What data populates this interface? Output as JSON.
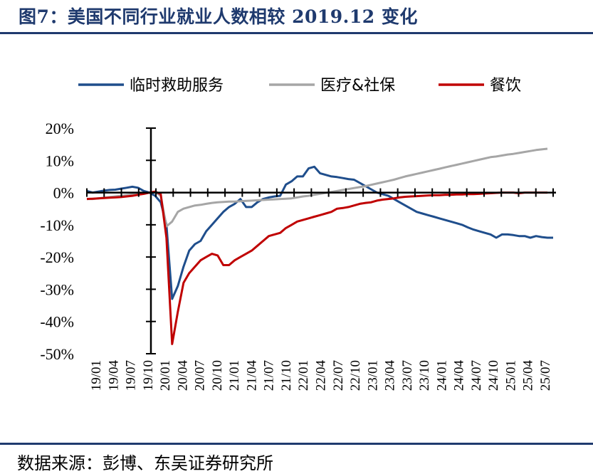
{
  "header": {
    "title": "图7：美国不同行业就业人数相较 2019.12 变化"
  },
  "footer": {
    "source": "数据来源：彭博、东吴证券研究所"
  },
  "chart_data": {
    "type": "line",
    "title": "图7：美国不同行业就业人数相较 2019.12 变化",
    "xlabel": "",
    "ylabel": "",
    "ylim": [
      -50,
      20
    ],
    "yticks": [
      20,
      10,
      0,
      -10,
      -20,
      -30,
      -40,
      -50
    ],
    "ytick_labels": [
      "20%",
      "10%",
      "0%",
      "-10%",
      "-20%",
      "-30%",
      "-40%",
      "-50%"
    ],
    "xtick_labels": [
      "19/01",
      "19/04",
      "19/07",
      "19/10",
      "20/01",
      "20/04",
      "20/07",
      "20/10",
      "21/01",
      "21/04",
      "21/07",
      "21/10",
      "22/01",
      "22/04",
      "22/07",
      "22/10",
      "23/01",
      "23/04",
      "23/07",
      "23/10",
      "24/01",
      "24/04",
      "24/07",
      "24/10",
      "25/01",
      "25/04",
      "25/07"
    ],
    "legend_position": "top",
    "grid": false,
    "series": [
      {
        "name": "临时救助服务",
        "color": "#1f4e8c",
        "points": [
          [
            0,
            0.5
          ],
          [
            1,
            0
          ],
          [
            2,
            0.3
          ],
          [
            3,
            0.6
          ],
          [
            4,
            0.8
          ],
          [
            5,
            0.9
          ],
          [
            6,
            1.2
          ],
          [
            7,
            1.5
          ],
          [
            8,
            1.8
          ],
          [
            9,
            1.5
          ],
          [
            10,
            0.5
          ],
          [
            11,
            0
          ],
          [
            12,
            -1
          ],
          [
            13,
            -3
          ],
          [
            14,
            -10
          ],
          [
            15,
            -33
          ],
          [
            16,
            -29
          ],
          [
            17,
            -23
          ],
          [
            18,
            -18
          ],
          [
            19,
            -16
          ],
          [
            20,
            -15
          ],
          [
            21,
            -12
          ],
          [
            22,
            -10
          ],
          [
            23,
            -8
          ],
          [
            24,
            -6
          ],
          [
            25,
            -4.5
          ],
          [
            26,
            -3.5
          ],
          [
            27,
            -2
          ],
          [
            28,
            -4.5
          ],
          [
            29,
            -4.5
          ],
          [
            30,
            -3
          ],
          [
            31,
            -2
          ],
          [
            32,
            -1.5
          ],
          [
            33,
            -1.2
          ],
          [
            34,
            -1
          ],
          [
            35,
            2.5
          ],
          [
            36,
            3.5
          ],
          [
            37,
            5
          ],
          [
            38,
            5
          ],
          [
            39,
            7.5
          ],
          [
            40,
            8
          ],
          [
            41,
            6
          ],
          [
            42,
            5.5
          ],
          [
            43,
            5
          ],
          [
            44,
            4.8
          ],
          [
            45,
            4.5
          ],
          [
            46,
            4.2
          ],
          [
            47,
            4
          ],
          [
            48,
            3
          ],
          [
            49,
            2
          ],
          [
            50,
            1
          ],
          [
            51,
            0
          ],
          [
            52,
            -0.5
          ],
          [
            53,
            -1
          ],
          [
            54,
            -2
          ],
          [
            55,
            -3
          ],
          [
            56,
            -4
          ],
          [
            57,
            -5
          ],
          [
            58,
            -6
          ],
          [
            59,
            -6.5
          ],
          [
            60,
            -7
          ],
          [
            61,
            -7.5
          ],
          [
            62,
            -8
          ],
          [
            63,
            -8.5
          ],
          [
            64,
            -9
          ],
          [
            65,
            -9.5
          ],
          [
            66,
            -10
          ],
          [
            67,
            -10.8
          ],
          [
            68,
            -11.5
          ],
          [
            69,
            -12
          ],
          [
            70,
            -12.5
          ],
          [
            71,
            -13
          ],
          [
            72,
            -14
          ],
          [
            73,
            -13
          ],
          [
            74,
            -13
          ],
          [
            75,
            -13.2
          ],
          [
            76,
            -13.5
          ],
          [
            77,
            -13.5
          ],
          [
            78,
            -14
          ],
          [
            79,
            -13.5
          ],
          [
            80,
            -13.8
          ],
          [
            81,
            -14
          ],
          [
            82,
            -14
          ]
        ]
      },
      {
        "name": "医疗&社保",
        "color": "#a6a6a6",
        "points": [
          [
            0,
            -2
          ],
          [
            1,
            -2
          ],
          [
            2,
            -1.8
          ],
          [
            3,
            -1.6
          ],
          [
            4,
            -1.4
          ],
          [
            5,
            -1.2
          ],
          [
            6,
            -1
          ],
          [
            7,
            -0.8
          ],
          [
            8,
            -0.6
          ],
          [
            9,
            -0.4
          ],
          [
            10,
            -0.2
          ],
          [
            11,
            0
          ],
          [
            12,
            0.2
          ],
          [
            13,
            -1
          ],
          [
            14,
            -10.5
          ],
          [
            15,
            -9
          ],
          [
            16,
            -6
          ],
          [
            17,
            -5
          ],
          [
            18,
            -4.5
          ],
          [
            19,
            -4
          ],
          [
            20,
            -3.8
          ],
          [
            21,
            -3.5
          ],
          [
            22,
            -3.2
          ],
          [
            23,
            -3
          ],
          [
            24,
            -2.9
          ],
          [
            25,
            -2.8
          ],
          [
            26,
            -2.8
          ],
          [
            27,
            -2.7
          ],
          [
            28,
            -2.6
          ],
          [
            29,
            -2.5
          ],
          [
            30,
            -2.4
          ],
          [
            31,
            -2.3
          ],
          [
            32,
            -2.2
          ],
          [
            33,
            -2.1
          ],
          [
            34,
            -2
          ],
          [
            35,
            -1.9
          ],
          [
            36,
            -1.8
          ],
          [
            37,
            -1.5
          ],
          [
            38,
            -1.2
          ],
          [
            39,
            -1
          ],
          [
            40,
            -0.7
          ],
          [
            41,
            -0.4
          ],
          [
            42,
            -0.1
          ],
          [
            43,
            0.2
          ],
          [
            44,
            0.5
          ],
          [
            45,
            0.8
          ],
          [
            46,
            1.1
          ],
          [
            47,
            1.4
          ],
          [
            48,
            1.7
          ],
          [
            49,
            2
          ],
          [
            50,
            2.4
          ],
          [
            51,
            2.8
          ],
          [
            52,
            3.2
          ],
          [
            53,
            3.6
          ],
          [
            54,
            4
          ],
          [
            55,
            4.5
          ],
          [
            56,
            5
          ],
          [
            57,
            5.4
          ],
          [
            58,
            5.8
          ],
          [
            59,
            6.2
          ],
          [
            60,
            6.6
          ],
          [
            61,
            7
          ],
          [
            62,
            7.4
          ],
          [
            63,
            7.8
          ],
          [
            64,
            8.2
          ],
          [
            65,
            8.6
          ],
          [
            66,
            9
          ],
          [
            67,
            9.4
          ],
          [
            68,
            9.8
          ],
          [
            69,
            10.2
          ],
          [
            70,
            10.6
          ],
          [
            71,
            11
          ],
          [
            72,
            11.2
          ],
          [
            73,
            11.5
          ],
          [
            74,
            11.8
          ],
          [
            75,
            12
          ],
          [
            76,
            12.3
          ],
          [
            77,
            12.6
          ],
          [
            78,
            12.9
          ],
          [
            79,
            13.2
          ],
          [
            80,
            13.4
          ],
          [
            81,
            13.6
          ]
        ]
      },
      {
        "name": "餐饮",
        "color": "#c00000",
        "points": [
          [
            0,
            -2
          ],
          [
            1,
            -1.9
          ],
          [
            2,
            -1.8
          ],
          [
            3,
            -1.7
          ],
          [
            4,
            -1.6
          ],
          [
            5,
            -1.5
          ],
          [
            6,
            -1.4
          ],
          [
            7,
            -1.2
          ],
          [
            8,
            -1
          ],
          [
            9,
            -0.7
          ],
          [
            10,
            -0.4
          ],
          [
            11,
            0
          ],
          [
            12,
            0.3
          ],
          [
            13,
            -0.5
          ],
          [
            14,
            -14
          ],
          [
            15,
            -47
          ],
          [
            16,
            -37
          ],
          [
            17,
            -28
          ],
          [
            18,
            -25
          ],
          [
            19,
            -23
          ],
          [
            20,
            -21
          ],
          [
            21,
            -20
          ],
          [
            22,
            -19
          ],
          [
            23,
            -19.5
          ],
          [
            24,
            -22.5
          ],
          [
            25,
            -22.5
          ],
          [
            26,
            -21
          ],
          [
            27,
            -20
          ],
          [
            28,
            -19
          ],
          [
            29,
            -18
          ],
          [
            30,
            -16.5
          ],
          [
            31,
            -15
          ],
          [
            32,
            -13.5
          ],
          [
            33,
            -13
          ],
          [
            34,
            -12.5
          ],
          [
            35,
            -11
          ],
          [
            36,
            -10
          ],
          [
            37,
            -9
          ],
          [
            38,
            -8.5
          ],
          [
            39,
            -8
          ],
          [
            40,
            -7.5
          ],
          [
            41,
            -7
          ],
          [
            42,
            -6.5
          ],
          [
            43,
            -6
          ],
          [
            44,
            -5
          ],
          [
            45,
            -4.8
          ],
          [
            46,
            -4.5
          ],
          [
            47,
            -4
          ],
          [
            48,
            -3.5
          ],
          [
            49,
            -3.2
          ],
          [
            50,
            -3
          ],
          [
            51,
            -2.5
          ],
          [
            52,
            -2.2
          ],
          [
            53,
            -2
          ],
          [
            54,
            -1.8
          ],
          [
            55,
            -1.5
          ],
          [
            56,
            -1.3
          ],
          [
            57,
            -1.2
          ],
          [
            58,
            -1.1
          ],
          [
            59,
            -1
          ],
          [
            60,
            -0.9
          ],
          [
            61,
            -0.8
          ],
          [
            62,
            -0.8
          ],
          [
            63,
            -0.7
          ],
          [
            64,
            -0.7
          ],
          [
            65,
            -0.6
          ],
          [
            66,
            -0.6
          ],
          [
            67,
            -0.5
          ],
          [
            68,
            -0.5
          ],
          [
            69,
            -0.4
          ],
          [
            70,
            -0.3
          ],
          [
            71,
            -0.2
          ],
          [
            72,
            -0.1
          ],
          [
            73,
            0
          ],
          [
            74,
            0
          ],
          [
            75,
            0
          ],
          [
            76,
            -0.2
          ],
          [
            77,
            0
          ],
          [
            78,
            0
          ],
          [
            79,
            0
          ],
          [
            80,
            0
          ],
          [
            81,
            0
          ]
        ]
      }
    ]
  }
}
